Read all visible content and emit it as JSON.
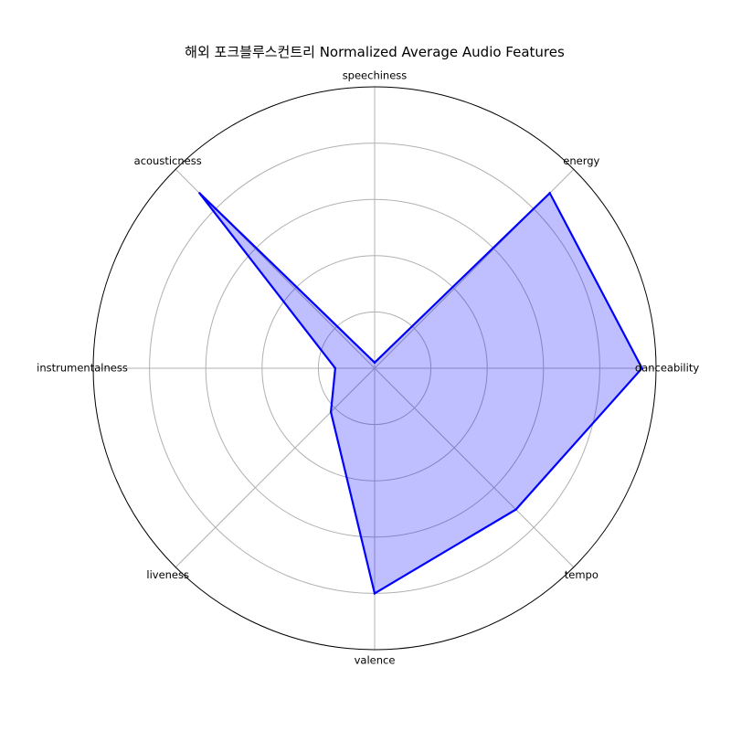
{
  "chart_data": {
    "type": "radar",
    "title": "해외 포크블루스컨트리 Normalized Average Audio Features",
    "categories": [
      "danceability",
      "energy",
      "speechiness",
      "acousticness",
      "instrumentalness",
      "liveness",
      "valence",
      "tempo"
    ],
    "values": [
      0.95,
      0.88,
      0.02,
      0.88,
      0.14,
      0.22,
      0.8,
      0.71
    ],
    "rlim": [
      0,
      1
    ],
    "r_gridlines": [
      0.2,
      0.4,
      0.6,
      0.8,
      1.0
    ],
    "grid": true,
    "colors": {
      "line": "#0000ff",
      "fill": "#0000ff",
      "fill_opacity": 0.25,
      "grid": "#b0b0b0",
      "outer": "#000000"
    }
  }
}
